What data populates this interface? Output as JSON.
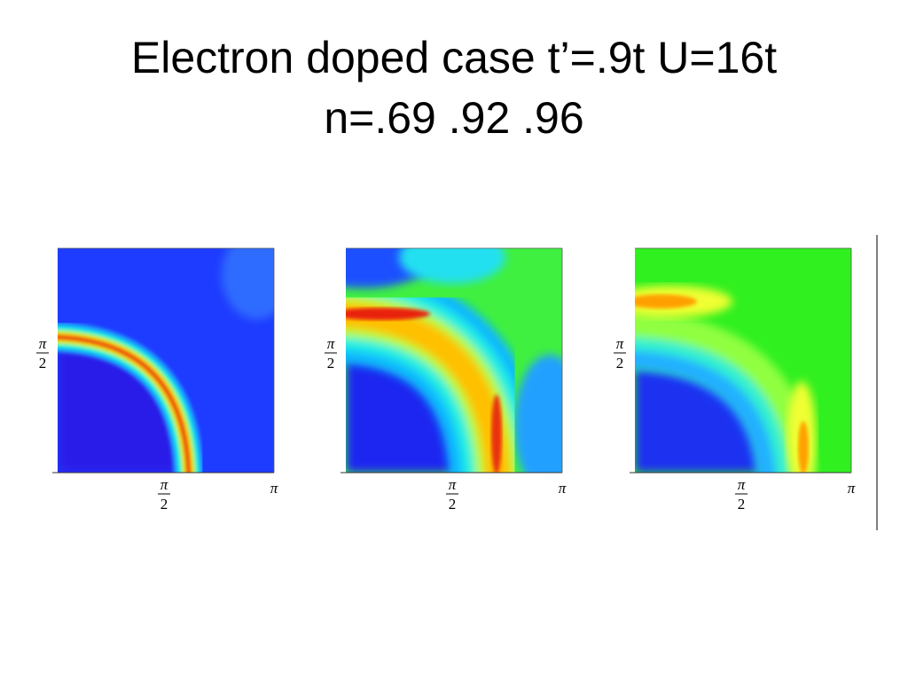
{
  "title": [
    "Electron doped case t’=.9t U=16t",
    "n=.69 .92 .96"
  ],
  "panels": [
    {
      "y_tick": {
        "numerator": "π",
        "denominator": "2"
      },
      "x_tick": {
        "numerator": "π",
        "denominator": "2"
      },
      "x_end": "π"
    },
    {
      "y_tick": {
        "numerator": "π",
        "denominator": "2"
      },
      "x_tick": {
        "numerator": "π",
        "denominator": "2"
      },
      "x_end": "π"
    },
    {
      "y_tick": {
        "numerator": "π",
        "denominator": "2"
      },
      "x_tick": {
        "numerator": "π",
        "denominator": "2"
      },
      "x_end": "π"
    }
  ]
}
